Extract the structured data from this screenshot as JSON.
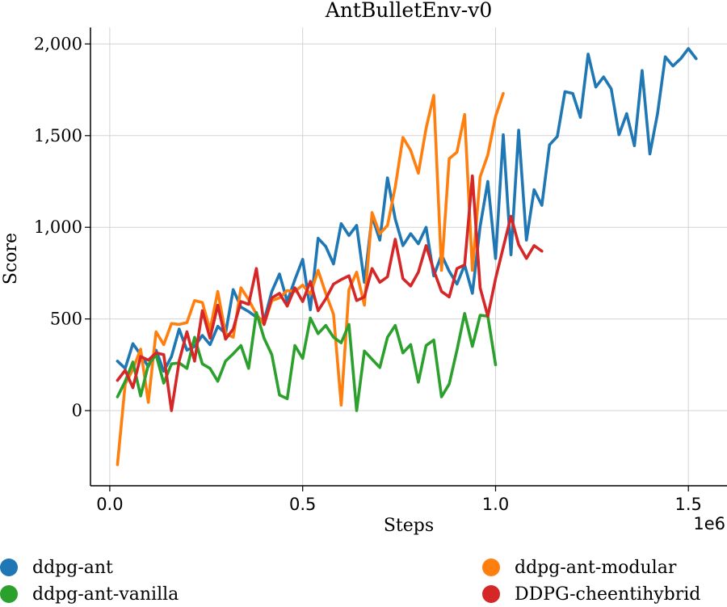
{
  "chart_data": {
    "type": "line",
    "title": "AntBulletEnv-v0",
    "xlabel": "Steps",
    "ylabel": "Score",
    "x_multiplier_label": "1e6",
    "xlim": [
      -0.05,
      1.6
    ],
    "ylim": [
      -410,
      2090
    ],
    "xticks": [
      0.0,
      0.5,
      1.0,
      1.5
    ],
    "xtick_labels": [
      "0.0",
      "0.5",
      "1.0",
      "1.5"
    ],
    "yticks": [
      0,
      500,
      1000,
      1500,
      2000
    ],
    "ytick_labels": [
      "0",
      "500",
      "1,000",
      "1,500",
      "2,000"
    ],
    "grid": true,
    "legend_position": "bottom",
    "series": [
      {
        "name": "ddpg-ant",
        "color": "#1f77b4",
        "points": [
          [
            0.02,
            270
          ],
          [
            0.04,
            230
          ],
          [
            0.06,
            365
          ],
          [
            0.08,
            305
          ],
          [
            0.1,
            240
          ],
          [
            0.12,
            330
          ],
          [
            0.14,
            215
          ],
          [
            0.16,
            295
          ],
          [
            0.18,
            445
          ],
          [
            0.2,
            330
          ],
          [
            0.22,
            350
          ],
          [
            0.24,
            410
          ],
          [
            0.26,
            360
          ],
          [
            0.28,
            460
          ],
          [
            0.3,
            420
          ],
          [
            0.32,
            660
          ],
          [
            0.34,
            565
          ],
          [
            0.36,
            540
          ],
          [
            0.38,
            510
          ],
          [
            0.4,
            490
          ],
          [
            0.42,
            650
          ],
          [
            0.44,
            745
          ],
          [
            0.46,
            595
          ],
          [
            0.48,
            715
          ],
          [
            0.5,
            825
          ],
          [
            0.52,
            550
          ],
          [
            0.54,
            940
          ],
          [
            0.56,
            895
          ],
          [
            0.58,
            800
          ],
          [
            0.6,
            1020
          ],
          [
            0.62,
            955
          ],
          [
            0.64,
            1010
          ],
          [
            0.66,
            700
          ],
          [
            0.68,
            1060
          ],
          [
            0.7,
            930
          ],
          [
            0.72,
            1270
          ],
          [
            0.74,
            1045
          ],
          [
            0.76,
            900
          ],
          [
            0.78,
            965
          ],
          [
            0.8,
            910
          ],
          [
            0.82,
            1000
          ],
          [
            0.84,
            735
          ],
          [
            0.86,
            850
          ],
          [
            0.88,
            760
          ],
          [
            0.9,
            690
          ],
          [
            0.92,
            795
          ],
          [
            0.94,
            640
          ],
          [
            0.96,
            1005
          ],
          [
            0.98,
            1250
          ],
          [
            1.0,
            830
          ],
          [
            1.02,
            1505
          ],
          [
            1.04,
            850
          ],
          [
            1.06,
            1530
          ],
          [
            1.08,
            930
          ],
          [
            1.1,
            1205
          ],
          [
            1.12,
            1120
          ],
          [
            1.14,
            1450
          ],
          [
            1.16,
            1495
          ],
          [
            1.18,
            1740
          ],
          [
            1.2,
            1730
          ],
          [
            1.22,
            1600
          ],
          [
            1.24,
            1945
          ],
          [
            1.26,
            1765
          ],
          [
            1.28,
            1820
          ],
          [
            1.3,
            1755
          ],
          [
            1.32,
            1505
          ],
          [
            1.34,
            1620
          ],
          [
            1.36,
            1445
          ],
          [
            1.38,
            1855
          ],
          [
            1.4,
            1400
          ],
          [
            1.42,
            1620
          ],
          [
            1.44,
            1930
          ],
          [
            1.46,
            1880
          ],
          [
            1.48,
            1920
          ],
          [
            1.5,
            1975
          ],
          [
            1.52,
            1920
          ]
        ]
      },
      {
        "name": "ddpg-ant-modular",
        "color": "#ff7f0e",
        "points": [
          [
            0.02,
            -295
          ],
          [
            0.04,
            145
          ],
          [
            0.06,
            225
          ],
          [
            0.08,
            335
          ],
          [
            0.1,
            45
          ],
          [
            0.12,
            430
          ],
          [
            0.14,
            360
          ],
          [
            0.16,
            475
          ],
          [
            0.18,
            470
          ],
          [
            0.2,
            480
          ],
          [
            0.22,
            600
          ],
          [
            0.24,
            590
          ],
          [
            0.26,
            440
          ],
          [
            0.28,
            650
          ],
          [
            0.3,
            420
          ],
          [
            0.32,
            400
          ],
          [
            0.34,
            670
          ],
          [
            0.36,
            605
          ],
          [
            0.38,
            525
          ],
          [
            0.4,
            470
          ],
          [
            0.42,
            600
          ],
          [
            0.44,
            615
          ],
          [
            0.46,
            655
          ],
          [
            0.48,
            650
          ],
          [
            0.5,
            685
          ],
          [
            0.52,
            635
          ],
          [
            0.54,
            765
          ],
          [
            0.56,
            640
          ],
          [
            0.58,
            525
          ],
          [
            0.6,
            30
          ],
          [
            0.62,
            660
          ],
          [
            0.64,
            755
          ],
          [
            0.66,
            575
          ],
          [
            0.68,
            1080
          ],
          [
            0.7,
            965
          ],
          [
            0.72,
            1010
          ],
          [
            0.74,
            1220
          ],
          [
            0.76,
            1490
          ],
          [
            0.78,
            1420
          ],
          [
            0.8,
            1295
          ],
          [
            0.82,
            1540
          ],
          [
            0.84,
            1720
          ],
          [
            0.86,
            765
          ],
          [
            0.88,
            1375
          ],
          [
            0.9,
            1410
          ],
          [
            0.92,
            1615
          ],
          [
            0.94,
            765
          ],
          [
            0.96,
            1275
          ],
          [
            0.98,
            1395
          ],
          [
            1.0,
            1605
          ],
          [
            1.02,
            1730
          ]
        ]
      },
      {
        "name": "ddpg-ant-vanilla",
        "color": "#2ca02c",
        "points": [
          [
            0.02,
            75
          ],
          [
            0.04,
            160
          ],
          [
            0.06,
            265
          ],
          [
            0.08,
            80
          ],
          [
            0.1,
            250
          ],
          [
            0.12,
            305
          ],
          [
            0.14,
            150
          ],
          [
            0.16,
            255
          ],
          [
            0.18,
            260
          ],
          [
            0.2,
            230
          ],
          [
            0.22,
            400
          ],
          [
            0.24,
            255
          ],
          [
            0.26,
            230
          ],
          [
            0.28,
            160
          ],
          [
            0.3,
            270
          ],
          [
            0.32,
            310
          ],
          [
            0.34,
            355
          ],
          [
            0.36,
            230
          ],
          [
            0.38,
            535
          ],
          [
            0.4,
            395
          ],
          [
            0.42,
            305
          ],
          [
            0.44,
            85
          ],
          [
            0.46,
            65
          ],
          [
            0.48,
            355
          ],
          [
            0.5,
            285
          ],
          [
            0.52,
            505
          ],
          [
            0.54,
            420
          ],
          [
            0.56,
            465
          ],
          [
            0.58,
            400
          ],
          [
            0.6,
            370
          ],
          [
            0.62,
            470
          ],
          [
            0.64,
            0
          ],
          [
            0.66,
            325
          ],
          [
            0.68,
            280
          ],
          [
            0.7,
            235
          ],
          [
            0.72,
            400
          ],
          [
            0.74,
            465
          ],
          [
            0.76,
            315
          ],
          [
            0.78,
            360
          ],
          [
            0.8,
            155
          ],
          [
            0.82,
            355
          ],
          [
            0.84,
            385
          ],
          [
            0.86,
            75
          ],
          [
            0.88,
            145
          ],
          [
            0.9,
            330
          ],
          [
            0.92,
            530
          ],
          [
            0.94,
            350
          ],
          [
            0.96,
            520
          ],
          [
            0.98,
            515
          ],
          [
            1.0,
            250
          ]
        ]
      },
      {
        "name": "DDPG-cheentihybrid",
        "color": "#d62728",
        "points": [
          [
            0.02,
            165
          ],
          [
            0.04,
            220
          ],
          [
            0.06,
            125
          ],
          [
            0.08,
            295
          ],
          [
            0.1,
            275
          ],
          [
            0.12,
            315
          ],
          [
            0.14,
            305
          ],
          [
            0.16,
            0
          ],
          [
            0.18,
            270
          ],
          [
            0.2,
            430
          ],
          [
            0.22,
            270
          ],
          [
            0.24,
            545
          ],
          [
            0.26,
            395
          ],
          [
            0.28,
            575
          ],
          [
            0.3,
            390
          ],
          [
            0.32,
            445
          ],
          [
            0.34,
            595
          ],
          [
            0.36,
            580
          ],
          [
            0.38,
            775
          ],
          [
            0.4,
            470
          ],
          [
            0.42,
            615
          ],
          [
            0.44,
            640
          ],
          [
            0.46,
            570
          ],
          [
            0.48,
            670
          ],
          [
            0.5,
            595
          ],
          [
            0.52,
            705
          ],
          [
            0.54,
            545
          ],
          [
            0.56,
            610
          ],
          [
            0.58,
            690
          ],
          [
            0.6,
            715
          ],
          [
            0.62,
            735
          ],
          [
            0.64,
            600
          ],
          [
            0.66,
            620
          ],
          [
            0.68,
            775
          ],
          [
            0.7,
            700
          ],
          [
            0.72,
            730
          ],
          [
            0.74,
            935
          ],
          [
            0.76,
            720
          ],
          [
            0.78,
            680
          ],
          [
            0.8,
            755
          ],
          [
            0.82,
            900
          ],
          [
            0.84,
            765
          ],
          [
            0.86,
            650
          ],
          [
            0.88,
            620
          ],
          [
            0.9,
            775
          ],
          [
            0.92,
            795
          ],
          [
            0.94,
            1280
          ],
          [
            0.96,
            670
          ],
          [
            0.98,
            515
          ],
          [
            1.0,
            720
          ],
          [
            1.02,
            890
          ],
          [
            1.04,
            1060
          ],
          [
            1.06,
            905
          ],
          [
            1.08,
            830
          ],
          [
            1.1,
            900
          ],
          [
            1.12,
            870
          ]
        ]
      }
    ]
  }
}
